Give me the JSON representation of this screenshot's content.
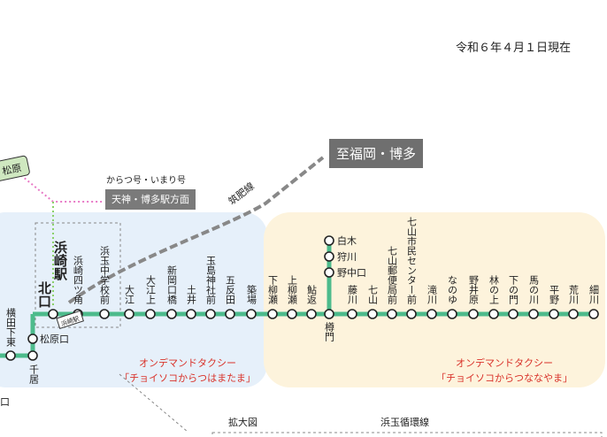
{
  "date": "令和６年４月１日現在",
  "to_fukuoka": "至福岡・博多",
  "rail_label": "筑肥線",
  "express": {
    "title": "からつ号・いまり号",
    "dest": "天神・博多駅方面"
  },
  "left_sign": "松原",
  "left_partial": "口",
  "hub": [
    "浜崎駅",
    "北口"
  ],
  "hub_small": "浜崎駅",
  "main_stops": [
    "浜崎四ツ角",
    "浜玉中学校前",
    "大江",
    "大江上",
    "新岡口橋",
    "土井",
    "玉島神社前",
    "五反田",
    "築場",
    "下柳瀬",
    "上柳瀬",
    "鮎返",
    "藤川",
    "七山",
    "七山郵便局前",
    "七山市民センター前",
    "滝川",
    "なのゆ",
    "野井原",
    "林の上",
    "下の門",
    "馬の川",
    "平野",
    "荒川",
    "細川"
  ],
  "junction_stop": "樽門",
  "branch_stops": [
    "白木",
    "狩川",
    "野中口"
  ],
  "left_stops": [
    "横田下東",
    "松原口",
    "千居"
  ],
  "taxi": [
    [
      "オンデマンドタクシー",
      "「チョイソコからつはまたま」"
    ],
    [
      "オンデマンドタクシー",
      "「チョイソコからつななやま」"
    ]
  ],
  "zoom_label": "拡大図",
  "loop_line": "浜玉循環線"
}
